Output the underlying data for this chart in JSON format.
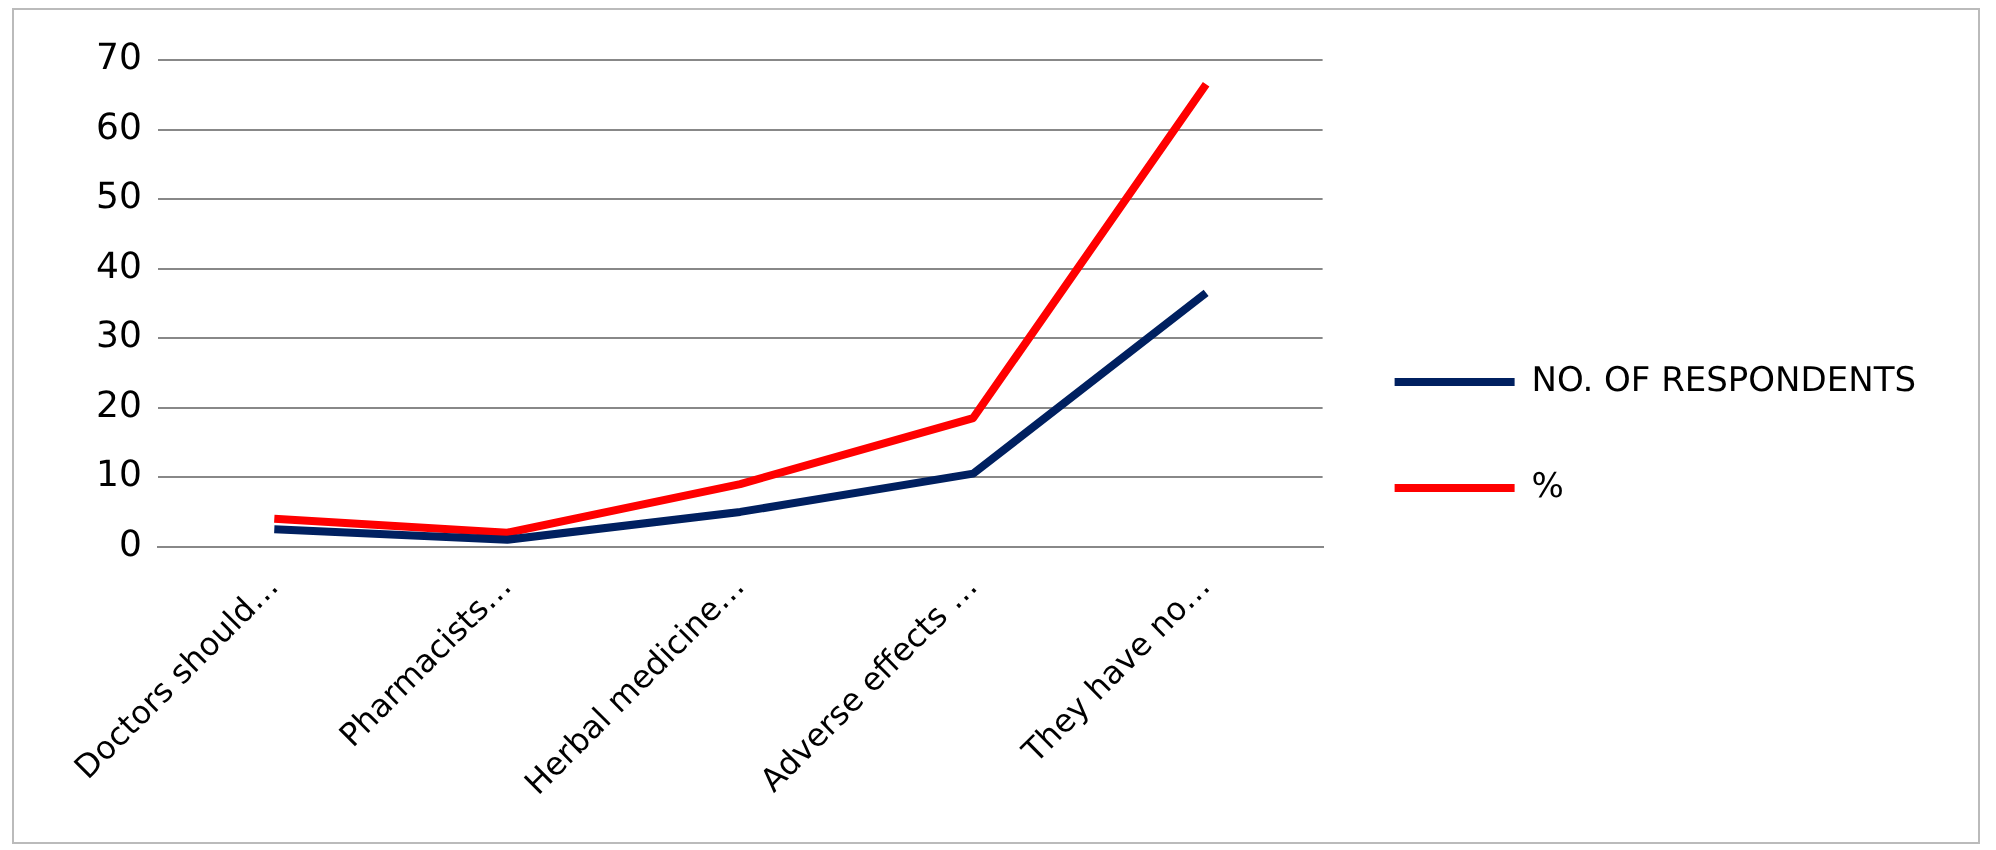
{
  "chart_data": {
    "type": "line",
    "categories": [
      "Doctors should…",
      "Pharmacists…",
      "Herbal medicine…",
      "Adverse effects …",
      "They have no…"
    ],
    "series": [
      {
        "name": "NO. OF RESPONDENTS",
        "color": "#002060",
        "values": [
          2.5,
          1,
          5,
          10.5,
          36.5
        ]
      },
      {
        "name": "%",
        "color": "#ff0000",
        "values": [
          4,
          2,
          9,
          18.5,
          66.5
        ]
      }
    ],
    "ylim": [
      0,
      70
    ],
    "yticks": [
      0,
      10,
      20,
      30,
      40,
      50,
      60,
      70
    ],
    "grid": "y",
    "legend": "right",
    "marker": "none"
  }
}
